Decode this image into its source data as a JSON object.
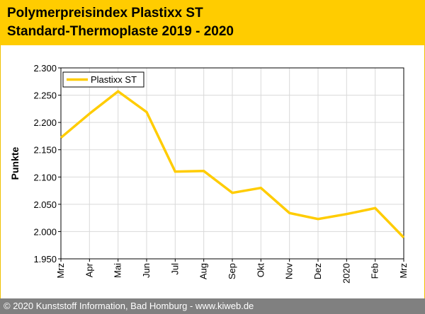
{
  "header": {
    "title_line1": "Polymerpreisindex Plastixx ST",
    "title_line2": "Standard-Thermoplaste 2019 - 2020"
  },
  "footer": {
    "text": "© 2020 Kunststoff Information, Bad Homburg - www.kiweb.de"
  },
  "colors": {
    "accent": "#ffcc00",
    "line": "#ffcc00",
    "footer_bg": "#808080",
    "grid": "#d9d9d9"
  },
  "chart_data": {
    "type": "line",
    "title": "Polymerpreisindex Plastixx ST Standard-Thermoplaste 2019 - 2020",
    "xlabel": "",
    "ylabel": "Punkte",
    "categories": [
      "Mrz",
      "Apr",
      "Mai",
      "Jun",
      "Jul",
      "Aug",
      "Sep",
      "Okt",
      "Nov",
      "Dez",
      "2020",
      "Feb",
      "Mrz"
    ],
    "series": [
      {
        "name": "Plastixx ST",
        "values": [
          2172,
          2216,
          2257,
          2219,
          2110,
          2111,
          2071,
          2080,
          2034,
          2023,
          2032,
          2043,
          1989
        ]
      }
    ],
    "ylim": [
      1950,
      2300
    ],
    "yticks": [
      1950,
      2000,
      2050,
      2100,
      2150,
      2200,
      2250,
      2300
    ],
    "ytick_labels": [
      "1.950",
      "2.000",
      "2.050",
      "2.100",
      "2.150",
      "2.200",
      "2.250",
      "2.300"
    ],
    "grid": true,
    "legend": "top-left"
  }
}
